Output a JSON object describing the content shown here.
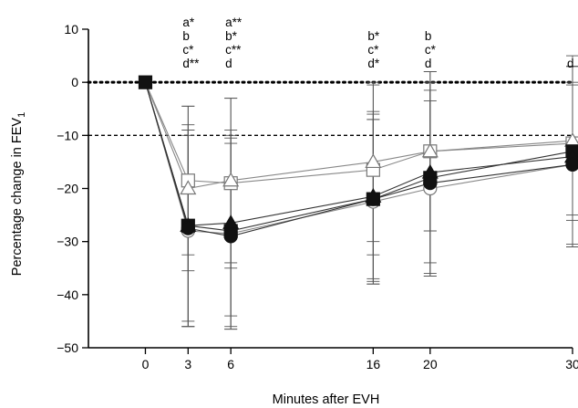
{
  "chart_data": {
    "type": "line",
    "xlabel": "Minutes after EVH",
    "ylabel": "Percentage change in FEV",
    "ylabel_subscript": "1",
    "x": [
      0,
      3,
      6,
      16,
      20,
      30
    ],
    "xlim": [
      -4,
      30
    ],
    "ylim": [
      -50,
      10
    ],
    "x_ticks": [
      0,
      3,
      6,
      16,
      20,
      30
    ],
    "y_ticks": [
      10,
      0,
      -10,
      -20,
      -30,
      -40,
      -50
    ],
    "reference_lines": [
      {
        "y": 0,
        "style": "dotted"
      },
      {
        "y": -10,
        "style": "dashed"
      }
    ],
    "series": [
      {
        "marker": "open-square",
        "values": [
          0,
          -18.5,
          -19,
          -16.5,
          -13,
          -11.5
        ],
        "err": [
          null,
          14,
          16,
          16,
          15,
          14.5
        ]
      },
      {
        "marker": "open-triangle",
        "values": [
          0,
          -20,
          -18.5,
          -15,
          -13,
          -11
        ],
        "err": [
          null,
          15.5,
          15.5,
          15,
          15,
          14
        ]
      },
      {
        "marker": "filled-square",
        "values": [
          0,
          -27,
          -28,
          -22,
          -18,
          -13
        ],
        "err": [
          null,
          18,
          18,
          16,
          18,
          18
        ]
      },
      {
        "marker": "filled-triangle",
        "values": [
          0,
          -27,
          -26.5,
          -21.5,
          -17,
          -14
        ],
        "err": [
          null,
          19,
          17.5,
          16,
          17,
          17
        ]
      },
      {
        "marker": "open-circle",
        "values": [
          0,
          -28,
          -28.5,
          -22.5,
          -20,
          -15.5
        ],
        "err": [
          null,
          18,
          18,
          15.5,
          16.5,
          15.5
        ]
      },
      {
        "marker": "filled-circle",
        "values": [
          0,
          -27.5,
          -29,
          -22,
          -19,
          -15.5
        ],
        "err": [
          null,
          18.5,
          17.5,
          15,
          17.5,
          15
        ]
      }
    ],
    "annotations": [
      {
        "x": 3,
        "lines": [
          "a*",
          "b",
          "c*",
          "d**"
        ]
      },
      {
        "x": 6,
        "lines": [
          "a**",
          "b*",
          "c**",
          "d"
        ]
      },
      {
        "x": 16,
        "lines": [
          "b*",
          "c*",
          "d*"
        ]
      },
      {
        "x": 20,
        "lines": [
          "b",
          "c*",
          "d"
        ]
      },
      {
        "x": 30,
        "lines": [
          "d"
        ]
      }
    ]
  }
}
